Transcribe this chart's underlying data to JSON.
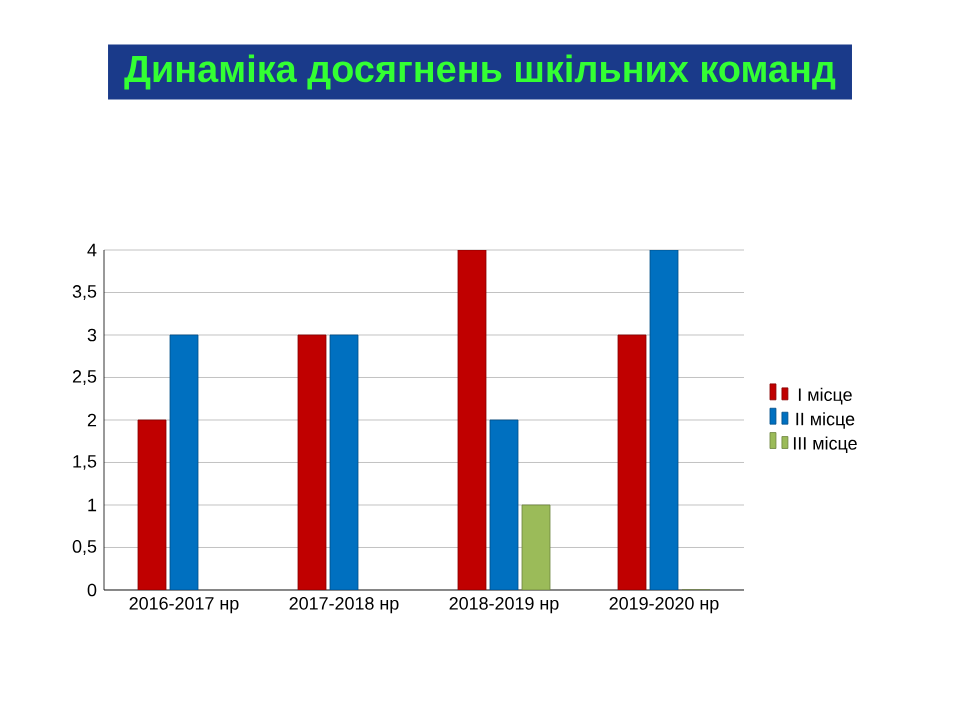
{
  "chart_data": {
    "type": "bar",
    "title": "Динаміка досягнень шкільних команд",
    "categories": [
      "2016-2017 нр",
      "2017-2018 нр",
      "2018-2019 нр",
      "2019-2020 нр"
    ],
    "series": [
      {
        "name": "I місце",
        "color": "#c00000",
        "values": [
          2,
          3,
          4,
          3
        ]
      },
      {
        "name": "II місце",
        "color": "#0070c0",
        "values": [
          3,
          3,
          2,
          4
        ]
      },
      {
        "name": "III місце",
        "color": "#9bbb59",
        "values": [
          null,
          null,
          1,
          0
        ]
      }
    ],
    "ylim": [
      0,
      4
    ],
    "yticks": [
      0,
      {
        "value": 0.5,
        "label": "0,5"
      },
      1,
      {
        "value": 1.5,
        "label": "1,5"
      },
      2,
      {
        "value": 2.5,
        "label": "2,5"
      },
      3,
      {
        "value": 3.5,
        "label": "3,5"
      },
      4
    ],
    "grid": "y",
    "legend": "right"
  }
}
